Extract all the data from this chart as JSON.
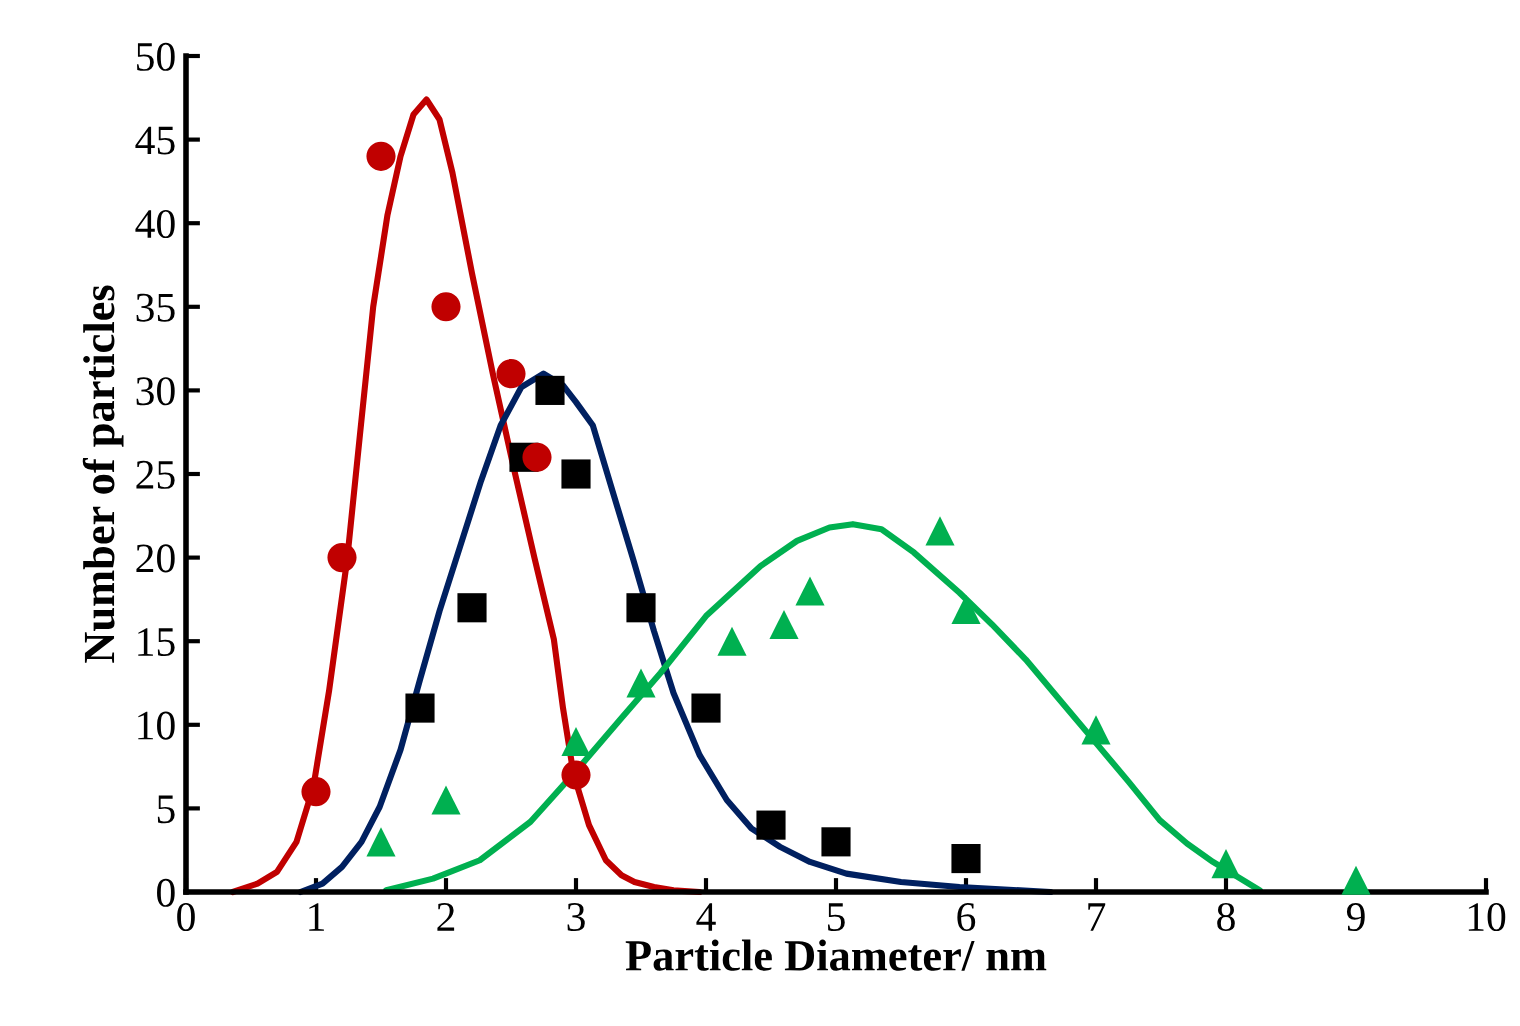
{
  "chart_data": {
    "type": "scatter",
    "xlabel": "Particle Diameter/ nm",
    "ylabel": "Number of particles",
    "xlim": [
      0,
      10
    ],
    "ylim": [
      0,
      50
    ],
    "xticks": [
      0,
      1,
      2,
      3,
      4,
      5,
      6,
      7,
      8,
      9,
      10
    ],
    "yticks": [
      0,
      5,
      10,
      15,
      20,
      25,
      30,
      35,
      40,
      45,
      50
    ],
    "grid": false,
    "legend": false,
    "series": [
      {
        "type": "line",
        "color": "#c00000",
        "marker": "none",
        "x": [
          0.36,
          0.55,
          0.7,
          0.85,
          0.98,
          1.1,
          1.24,
          1.34,
          1.44,
          1.55,
          1.65,
          1.75,
          1.85,
          1.95,
          2.05,
          2.2,
          2.36,
          2.52,
          2.68,
          2.83,
          2.9,
          2.98,
          3.1,
          3.23,
          3.35,
          3.45,
          3.6,
          3.75,
          3.95
        ],
        "values": [
          0,
          0.5,
          1.2,
          3,
          6.3,
          12,
          19.9,
          27.5,
          35,
          40.5,
          44,
          46.5,
          47.4,
          46.2,
          43,
          37,
          31,
          25.4,
          20,
          15.1,
          11,
          7.1,
          4,
          1.9,
          1,
          0.6,
          0.3,
          0.1,
          0
        ]
      },
      {
        "type": "line",
        "color": "#002060",
        "marker": "none",
        "x": [
          0.88,
          1.05,
          1.2,
          1.35,
          1.49,
          1.65,
          1.8,
          1.95,
          2.11,
          2.27,
          2.42,
          2.58,
          2.75,
          2.9,
          3.0,
          3.13,
          3.28,
          3.44,
          3.6,
          3.75,
          3.95,
          4.16,
          4.35,
          4.57,
          4.8,
          5.08,
          5.5,
          5.95,
          6.65
        ],
        "values": [
          0,
          0.5,
          1.5,
          3,
          5.1,
          8.5,
          12.7,
          16.8,
          20.7,
          24.6,
          27.9,
          30.2,
          31,
          30.3,
          29.3,
          27.9,
          24,
          19.9,
          15.6,
          11.9,
          8.2,
          5.5,
          3.8,
          2.7,
          1.8,
          1.1,
          0.6,
          0.3,
          0
        ]
      },
      {
        "type": "line",
        "color": "#00b050",
        "marker": "none",
        "x": [
          1.54,
          1.9,
          2.26,
          2.65,
          3.03,
          3.35,
          3.65,
          4.0,
          4.42,
          4.7,
          4.95,
          5.13,
          5.35,
          5.6,
          5.95,
          6.2,
          6.46,
          6.72,
          6.98,
          7.25,
          7.49,
          7.7,
          7.9,
          8.26
        ],
        "values": [
          0.1,
          0.8,
          1.9,
          4.2,
          7.5,
          10.4,
          13.1,
          16.5,
          19.5,
          21,
          21.8,
          22,
          21.7,
          20.3,
          17.9,
          16,
          13.9,
          11.5,
          9.1,
          6.6,
          4.3,
          2.9,
          1.8,
          0.1
        ]
      },
      {
        "color": "#000000",
        "marker": "square",
        "x": [
          1.8,
          2.2,
          2.6,
          2.8,
          3.0,
          3.5,
          4.0,
          4.5,
          5.0,
          6.0
        ],
        "values": [
          11,
          17,
          26,
          30,
          25,
          17,
          11,
          4,
          3,
          2
        ]
      },
      {
        "color": "#c00000",
        "marker": "circle",
        "x": [
          1.0,
          1.2,
          1.5,
          2.0,
          2.5,
          2.7,
          3.0
        ],
        "values": [
          6,
          20,
          44,
          35,
          31,
          26,
          7
        ]
      },
      {
        "color": "#00b050",
        "marker": "triangle",
        "x": [
          1.5,
          2.0,
          3.0,
          3.5,
          4.2,
          4.6,
          4.8,
          5.8,
          6.0,
          7.0,
          8.0,
          9.0
        ],
        "values": [
          3,
          5.5,
          9,
          12.5,
          15,
          16,
          18,
          21.6,
          16.9,
          9.7,
          1.7,
          0.7
        ]
      }
    ]
  }
}
